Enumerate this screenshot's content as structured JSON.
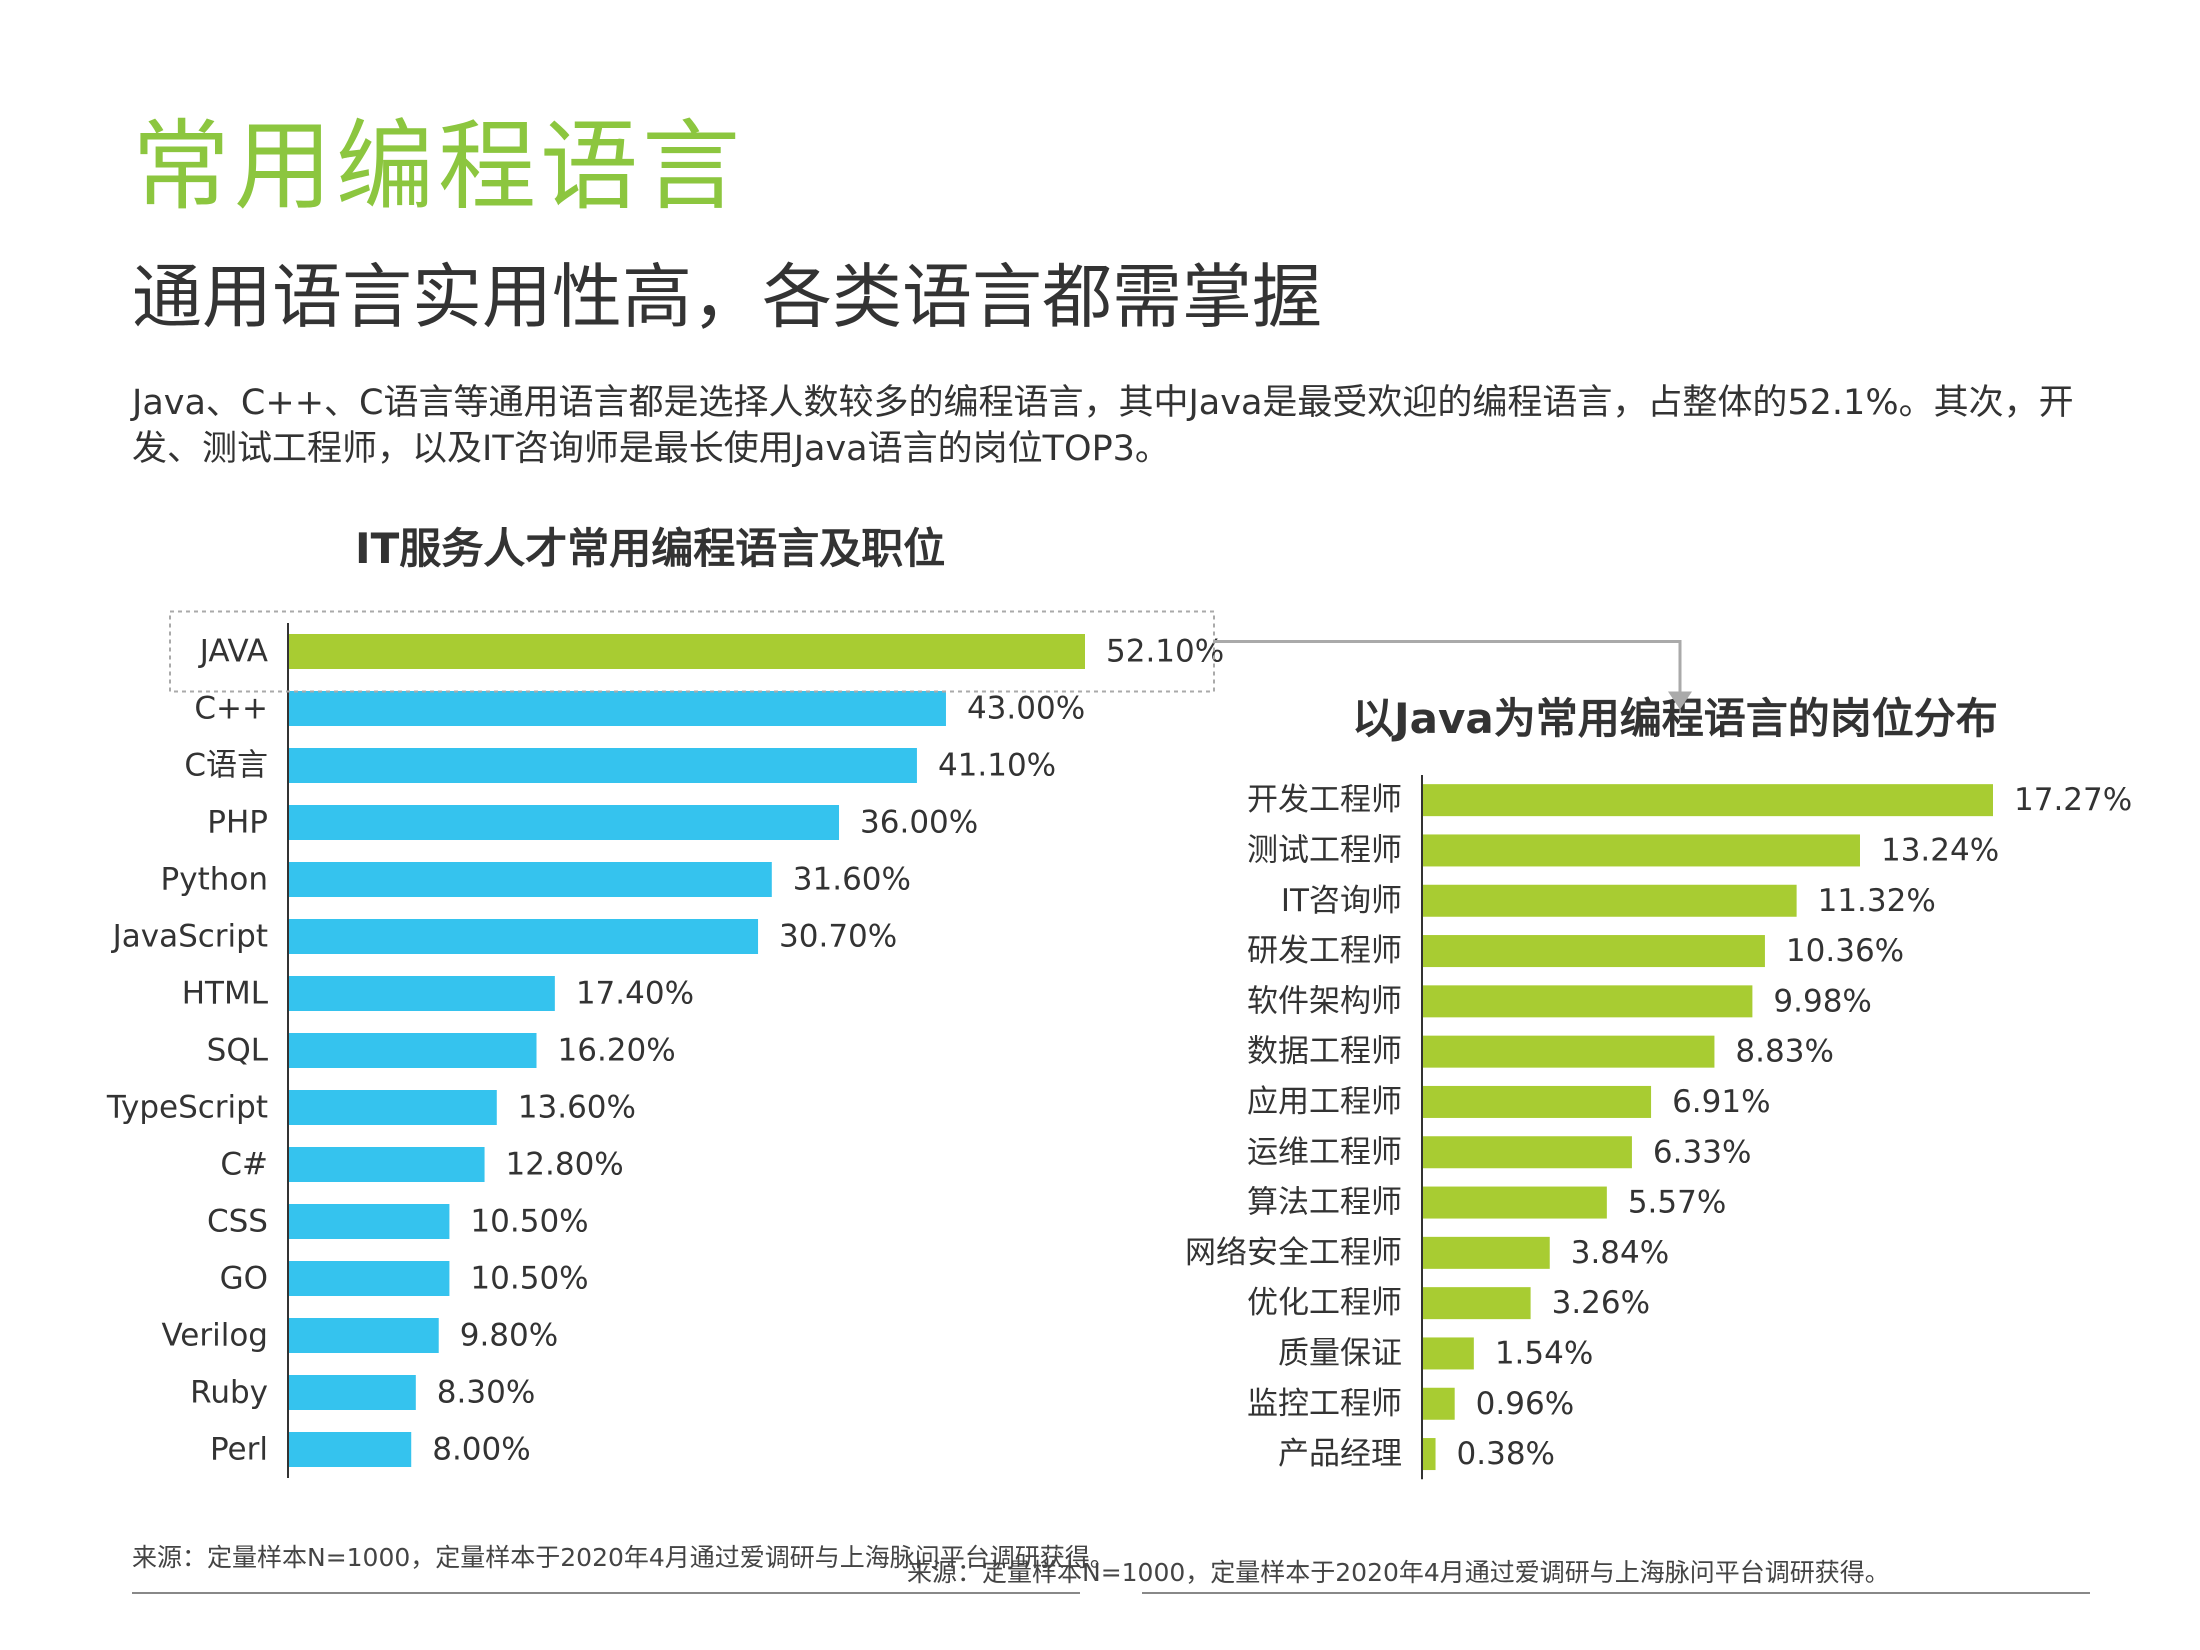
{
  "header": {
    "title": "常用编程语言",
    "subtitle": "通用语言实用性高，各类语言都需掌握",
    "description": "Java、C++、C语言等通用语言都是选择人数较多的编程语言，其中Java是最受欢迎的编程语言，占整体的52.1%。其次，开发、测试工程师，以及IT咨询师是最长使用Java语言的岗位TOP3。"
  },
  "colors": {
    "title_green": "#8cc63f",
    "bar_green": "#a8cc32",
    "bar_blue": "#35c3ee",
    "axis": "#333333"
  },
  "chart_data": [
    {
      "type": "bar",
      "orientation": "horizontal",
      "title": "IT服务人才常用编程语言及职位",
      "categories": [
        "JAVA",
        "C++",
        "C语言",
        "PHP",
        "Python",
        "JavaScript",
        "HTML",
        "SQL",
        "TypeScript",
        "C#",
        "CSS",
        "GO",
        "Verilog",
        "Ruby",
        "Perl"
      ],
      "values": [
        52.1,
        43.0,
        41.1,
        36.0,
        31.6,
        30.7,
        17.4,
        16.2,
        13.6,
        12.8,
        10.5,
        10.5,
        9.8,
        8.3,
        8.0
      ],
      "value_labels": [
        "52.10%",
        "43.00%",
        "41.10%",
        "36.00%",
        "31.60%",
        "30.70%",
        "17.40%",
        "16.20%",
        "13.60%",
        "12.80%",
        "10.50%",
        "10.50%",
        "9.80%",
        "8.30%",
        "8.00%"
      ],
      "highlight": "JAVA",
      "unit": "%",
      "xlim": [
        0,
        52.1
      ],
      "grid": false,
      "legend": "none"
    },
    {
      "type": "bar",
      "orientation": "horizontal",
      "title": "以Java为常用编程语言的岗位分布",
      "categories": [
        "开发工程师",
        "测试工程师",
        "IT咨询师",
        "研发工程师",
        "软件架构师",
        "数据工程师",
        "应用工程师",
        "运维工程师",
        "算法工程师",
        "网络安全工程师",
        "优化工程师",
        "质量保证",
        "监控工程师",
        "产品经理"
      ],
      "values": [
        17.27,
        13.24,
        11.32,
        10.36,
        9.98,
        8.83,
        6.91,
        6.33,
        5.57,
        3.84,
        3.26,
        1.54,
        0.96,
        0.38
      ],
      "value_labels": [
        "17.27%",
        "13.24%",
        "11.32%",
        "10.36%",
        "9.98%",
        "8.83%",
        "6.91%",
        "6.33%",
        "5.57%",
        "3.84%",
        "3.26%",
        "1.54%",
        "0.96%",
        "0.38%"
      ],
      "unit": "%",
      "xlim": [
        0,
        17.27
      ],
      "grid": false,
      "legend": "none"
    }
  ],
  "footer": {
    "source_left": "来源：定量样本N=1000，定量样本于2020年4月通过爱调研与上海脉问平台调研获得。",
    "source_right": "来源：定量样本N=1000，定量样本于2020年4月通过爱调研与上海脉问平台调研获得。"
  }
}
